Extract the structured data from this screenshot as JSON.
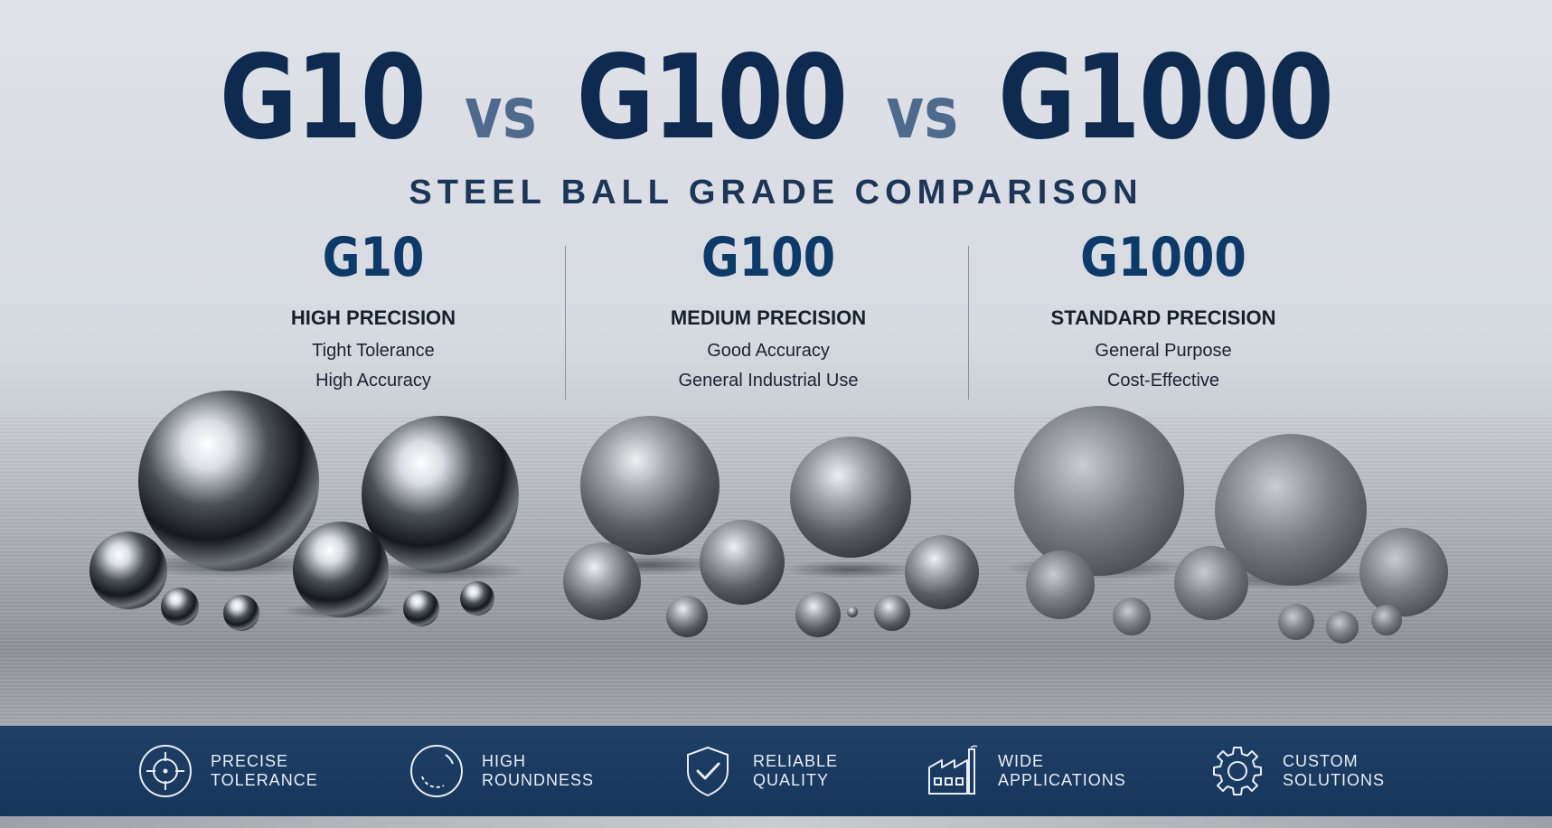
{
  "headline": {
    "g1": "G10",
    "vs1": "vs",
    "g2": "G100",
    "vs2": "vs",
    "g3": "G1000"
  },
  "subtitle": "STEEL BALL GRADE COMPARISON",
  "grades": [
    {
      "grade": "G10",
      "level": "HIGH PRECISION",
      "features": [
        "Tight Tolerance",
        "High Accuracy"
      ]
    },
    {
      "grade": "G100",
      "level": "MEDIUM PRECISION",
      "features": [
        "Good Accuracy",
        "General Industrial Use"
      ]
    },
    {
      "grade": "G1000",
      "level": "STANDARD PRECISION",
      "features": [
        "General Purpose",
        "Cost-Effective"
      ]
    }
  ],
  "footer": [
    {
      "icon": "crosshair-icon",
      "line1": "PRECISE",
      "line2": "TOLERANCE"
    },
    {
      "icon": "circle-icon",
      "line1": "HIGH",
      "line2": "ROUNDNESS"
    },
    {
      "icon": "shield-check-icon",
      "line1": "RELIABLE",
      "line2": "QUALITY"
    },
    {
      "icon": "factory-icon",
      "line1": "WIDE",
      "line2": "APPLICATIONS"
    },
    {
      "icon": "gear-icon",
      "line1": "CUSTOM",
      "line2": "SOLUTIONS"
    }
  ],
  "colors": {
    "navy": "#0e2a4f",
    "accent": "#4e6a8c",
    "band": "#1a3a60"
  }
}
